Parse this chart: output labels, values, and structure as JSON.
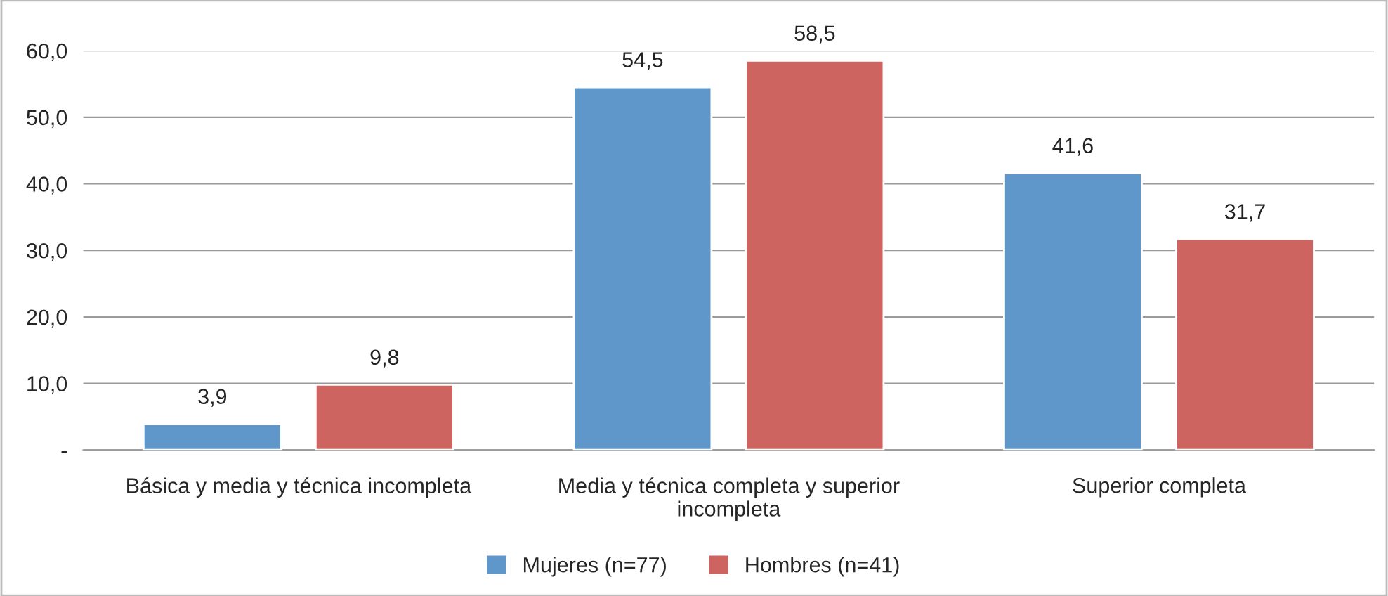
{
  "chart_data": {
    "type": "bar",
    "categories": [
      "Básica y media y técnica incompleta",
      "Media y técnica completa y superior incompleta",
      "Superior completa"
    ],
    "series": [
      {
        "name": "Mujeres (n=77)",
        "color": "#6097cb",
        "values": [
          3.9,
          54.5,
          41.6
        ],
        "value_labels": [
          "3,9",
          "54,5",
          "41,6"
        ]
      },
      {
        "name": "Hombres (n=41)",
        "color": "#cd6460",
        "values": [
          9.8,
          58.5,
          31.7
        ],
        "value_labels": [
          "9,8",
          "58,5",
          "31,7"
        ]
      }
    ],
    "ylim": [
      0,
      60
    ],
    "yticks": [
      {
        "value": 0,
        "label": "-"
      },
      {
        "value": 10,
        "label": "10,0"
      },
      {
        "value": 20,
        "label": "20,0"
      },
      {
        "value": 30,
        "label": "30,0"
      },
      {
        "value": 40,
        "label": "40,0"
      },
      {
        "value": 50,
        "label": "50,0"
      },
      {
        "value": 60,
        "label": "60,0"
      }
    ],
    "grid": "y",
    "legend": "bottom"
  }
}
